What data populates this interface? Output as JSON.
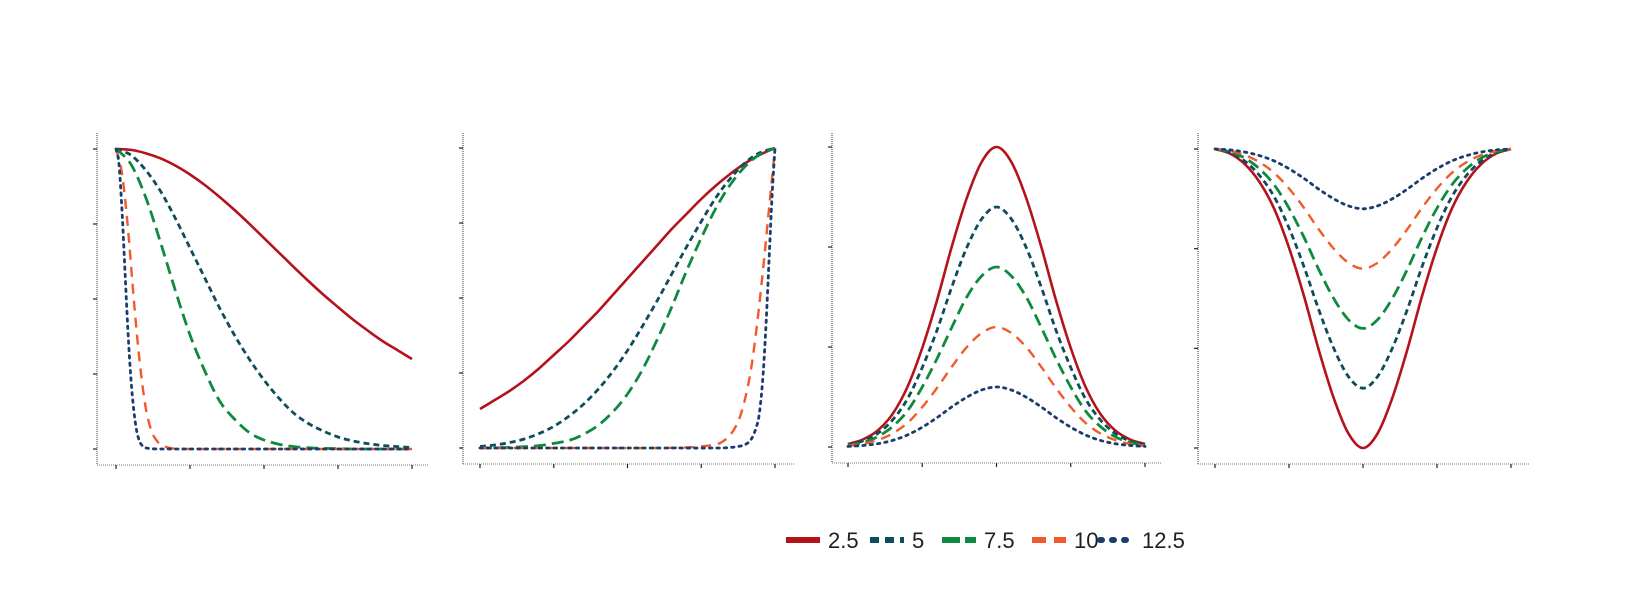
{
  "chart_data": [
    {
      "type": "line",
      "panel": 1,
      "xlim": [
        0,
        1
      ],
      "ylim": [
        0,
        1
      ],
      "x_ticks": 5,
      "y_ticks": 5,
      "grid": false,
      "series": [
        {
          "name": "2.5",
          "color": "#b5121b",
          "dash": "solid",
          "x": [
            0,
            0.05,
            0.1,
            0.15,
            0.2,
            0.25,
            0.3,
            0.35,
            0.4,
            0.45,
            0.5,
            0.55,
            0.6,
            0.65,
            0.7,
            0.75,
            0.8,
            0.85,
            0.9,
            0.95,
            1
          ],
          "values": [
            1,
            0.997,
            0.986,
            0.969,
            0.945,
            0.915,
            0.88,
            0.84,
            0.797,
            0.751,
            0.703,
            0.655,
            0.607,
            0.56,
            0.515,
            0.473,
            0.432,
            0.395,
            0.36,
            0.33,
            0.3
          ]
        },
        {
          "name": "5",
          "color": "#0f4c5c",
          "dash": "dash-short",
          "x": [
            0,
            0.05,
            0.1,
            0.15,
            0.2,
            0.25,
            0.3,
            0.35,
            0.4,
            0.45,
            0.5,
            0.55,
            0.6,
            0.65,
            0.7,
            0.75,
            0.8,
            0.85,
            0.9,
            0.95,
            1
          ],
          "values": [
            1,
            0.98,
            0.93,
            0.86,
            0.77,
            0.67,
            0.57,
            0.47,
            0.38,
            0.3,
            0.23,
            0.17,
            0.12,
            0.085,
            0.06,
            0.04,
            0.027,
            0.018,
            0.012,
            0.008,
            0.005
          ]
        },
        {
          "name": "7.5",
          "color": "#0e8a3e",
          "dash": "dash-long",
          "x": [
            0,
            0.05,
            0.1,
            0.15,
            0.2,
            0.25,
            0.3,
            0.35,
            0.4,
            0.45,
            0.5,
            0.55,
            0.6,
            0.65,
            0.7,
            0.75,
            0.8,
            0.85,
            0.9,
            0.95,
            1
          ],
          "values": [
            1,
            0.95,
            0.84,
            0.69,
            0.53,
            0.38,
            0.26,
            0.16,
            0.1,
            0.055,
            0.03,
            0.016,
            0.008,
            0.004,
            0.002,
            0.001,
            0,
            0,
            0,
            0,
            0
          ]
        },
        {
          "name": "10",
          "color": "#f15a29",
          "dash": "dash-orange",
          "x": [
            0,
            0.02,
            0.04,
            0.06,
            0.08,
            0.1,
            0.12,
            0.14,
            0.16,
            0.18,
            0.2,
            0.25,
            0.3,
            0.4,
            0.5,
            0.6,
            0.7,
            0.8,
            0.9,
            1
          ],
          "values": [
            1,
            0.92,
            0.74,
            0.5,
            0.29,
            0.14,
            0.06,
            0.025,
            0.01,
            0.004,
            0.001,
            0,
            0,
            0,
            0,
            0,
            0,
            0,
            0,
            0
          ]
        },
        {
          "name": "12.5",
          "color": "#1a3d6d",
          "dash": "dotted",
          "x": [
            0,
            0.01,
            0.02,
            0.03,
            0.04,
            0.05,
            0.06,
            0.07,
            0.08,
            0.09,
            0.1,
            0.12,
            0.15,
            0.2,
            0.3,
            0.5,
            0.7,
            1
          ],
          "values": [
            1,
            0.95,
            0.8,
            0.6,
            0.4,
            0.24,
            0.13,
            0.06,
            0.025,
            0.01,
            0.004,
            0.001,
            0,
            0,
            0,
            0,
            0,
            0
          ]
        }
      ]
    },
    {
      "type": "line",
      "panel": 2,
      "xlim": [
        0,
        1
      ],
      "ylim": [
        0,
        1
      ],
      "x_ticks": 5,
      "y_ticks": 5,
      "grid": false,
      "series": [
        {
          "name": "2.5",
          "color": "#b5121b",
          "dash": "solid",
          "x": [
            0,
            0.05,
            0.1,
            0.15,
            0.2,
            0.25,
            0.3,
            0.35,
            0.4,
            0.45,
            0.5,
            0.55,
            0.6,
            0.65,
            0.7,
            0.75,
            0.8,
            0.85,
            0.9,
            0.95,
            1
          ],
          "values": [
            0.13,
            0.16,
            0.19,
            0.225,
            0.265,
            0.31,
            0.355,
            0.405,
            0.455,
            0.51,
            0.565,
            0.62,
            0.675,
            0.73,
            0.78,
            0.83,
            0.875,
            0.915,
            0.95,
            0.978,
            1
          ]
        },
        {
          "name": "5",
          "color": "#0f4c5c",
          "dash": "dash-short",
          "x": [
            0,
            0.05,
            0.1,
            0.15,
            0.2,
            0.25,
            0.3,
            0.35,
            0.4,
            0.45,
            0.5,
            0.55,
            0.6,
            0.65,
            0.7,
            0.75,
            0.8,
            0.85,
            0.9,
            0.95,
            1
          ],
          "values": [
            0.005,
            0.01,
            0.018,
            0.03,
            0.048,
            0.072,
            0.105,
            0.145,
            0.195,
            0.255,
            0.325,
            0.405,
            0.49,
            0.58,
            0.67,
            0.755,
            0.835,
            0.9,
            0.952,
            0.985,
            1
          ]
        },
        {
          "name": "7.5",
          "color": "#0e8a3e",
          "dash": "dash-long",
          "x": [
            0,
            0.1,
            0.2,
            0.3,
            0.35,
            0.4,
            0.45,
            0.5,
            0.55,
            0.6,
            0.65,
            0.7,
            0.75,
            0.8,
            0.85,
            0.9,
            0.95,
            1
          ],
          "values": [
            0,
            0.002,
            0.008,
            0.025,
            0.045,
            0.075,
            0.12,
            0.18,
            0.26,
            0.36,
            0.47,
            0.59,
            0.7,
            0.8,
            0.88,
            0.94,
            0.98,
            1
          ]
        },
        {
          "name": "10",
          "color": "#f15a29",
          "dash": "dash-orange",
          "x": [
            0,
            0.2,
            0.4,
            0.6,
            0.7,
            0.75,
            0.8,
            0.82,
            0.84,
            0.86,
            0.88,
            0.9,
            0.92,
            0.94,
            0.96,
            0.98,
            1
          ],
          "values": [
            0,
            0,
            0,
            0,
            0.002,
            0.005,
            0.012,
            0.02,
            0.035,
            0.06,
            0.1,
            0.17,
            0.27,
            0.42,
            0.6,
            0.8,
            1
          ]
        },
        {
          "name": "12.5",
          "color": "#1a3d6d",
          "dash": "dotted",
          "x": [
            0,
            0.2,
            0.4,
            0.6,
            0.8,
            0.85,
            0.88,
            0.9,
            0.92,
            0.94,
            0.95,
            0.96,
            0.97,
            0.98,
            0.99,
            1
          ],
          "values": [
            0,
            0,
            0,
            0,
            0,
            0.002,
            0.006,
            0.012,
            0.03,
            0.08,
            0.14,
            0.25,
            0.42,
            0.63,
            0.84,
            1
          ]
        }
      ]
    },
    {
      "type": "line",
      "panel": 3,
      "xlim": [
        0,
        1
      ],
      "ylim": [
        0,
        1
      ],
      "x_ticks": 5,
      "y_ticks": 4,
      "grid": false,
      "series": [
        {
          "name": "2.5",
          "color": "#b5121b",
          "dash": "solid",
          "x": [
            0,
            0.05,
            0.1,
            0.15,
            0.2,
            0.25,
            0.3,
            0.35,
            0.4,
            0.45,
            0.5,
            0.55,
            0.6,
            0.65,
            0.7,
            0.75,
            0.8,
            0.85,
            0.9,
            0.95,
            1
          ],
          "values": [
            0.01,
            0.025,
            0.055,
            0.11,
            0.2,
            0.33,
            0.49,
            0.67,
            0.83,
            0.95,
            1,
            0.95,
            0.83,
            0.67,
            0.49,
            0.33,
            0.2,
            0.11,
            0.055,
            0.025,
            0.01
          ]
        },
        {
          "name": "5",
          "color": "#0f4c5c",
          "dash": "dash-short",
          "x": [
            0,
            0.05,
            0.1,
            0.15,
            0.2,
            0.25,
            0.3,
            0.35,
            0.4,
            0.45,
            0.5,
            0.55,
            0.6,
            0.65,
            0.7,
            0.75,
            0.8,
            0.85,
            0.9,
            0.95,
            1
          ],
          "values": [
            0.008,
            0.02,
            0.045,
            0.09,
            0.16,
            0.265,
            0.39,
            0.535,
            0.665,
            0.76,
            0.8,
            0.76,
            0.665,
            0.535,
            0.39,
            0.265,
            0.16,
            0.09,
            0.045,
            0.02,
            0.008
          ]
        },
        {
          "name": "7.5",
          "color": "#0e8a3e",
          "dash": "dash-long",
          "x": [
            0,
            0.05,
            0.1,
            0.15,
            0.2,
            0.25,
            0.3,
            0.35,
            0.4,
            0.45,
            0.5,
            0.55,
            0.6,
            0.65,
            0.7,
            0.75,
            0.8,
            0.85,
            0.9,
            0.95,
            1
          ],
          "values": [
            0.006,
            0.015,
            0.034,
            0.068,
            0.12,
            0.2,
            0.295,
            0.4,
            0.5,
            0.57,
            0.6,
            0.57,
            0.5,
            0.4,
            0.295,
            0.2,
            0.12,
            0.068,
            0.034,
            0.015,
            0.006
          ]
        },
        {
          "name": "10",
          "color": "#f15a29",
          "dash": "dash-orange",
          "x": [
            0,
            0.05,
            0.1,
            0.15,
            0.2,
            0.25,
            0.3,
            0.35,
            0.4,
            0.45,
            0.5,
            0.55,
            0.6,
            0.65,
            0.7,
            0.75,
            0.8,
            0.85,
            0.9,
            0.95,
            1
          ],
          "values": [
            0.004,
            0.01,
            0.023,
            0.045,
            0.08,
            0.133,
            0.197,
            0.268,
            0.333,
            0.38,
            0.4,
            0.38,
            0.333,
            0.268,
            0.197,
            0.133,
            0.08,
            0.045,
            0.023,
            0.01,
            0.004
          ]
        },
        {
          "name": "12.5",
          "color": "#1a3d6d",
          "dash": "dotted",
          "x": [
            0,
            0.05,
            0.1,
            0.15,
            0.2,
            0.25,
            0.3,
            0.35,
            0.4,
            0.45,
            0.5,
            0.55,
            0.6,
            0.65,
            0.7,
            0.75,
            0.8,
            0.85,
            0.9,
            0.95,
            1
          ],
          "values": [
            0.002,
            0.005,
            0.011,
            0.022,
            0.04,
            0.066,
            0.098,
            0.134,
            0.166,
            0.19,
            0.2,
            0.19,
            0.166,
            0.134,
            0.098,
            0.066,
            0.04,
            0.022,
            0.011,
            0.005,
            0.002
          ]
        }
      ]
    },
    {
      "type": "line",
      "panel": 4,
      "xlim": [
        0,
        1
      ],
      "ylim": [
        0,
        1
      ],
      "x_ticks": 5,
      "y_ticks": 4,
      "grid": false,
      "series": [
        {
          "name": "2.5",
          "color": "#b5121b",
          "dash": "solid",
          "x": [
            0,
            0.05,
            0.1,
            0.15,
            0.2,
            0.25,
            0.3,
            0.35,
            0.4,
            0.45,
            0.5,
            0.55,
            0.6,
            0.65,
            0.7,
            0.75,
            0.8,
            0.85,
            0.9,
            0.95,
            1
          ],
          "values": [
            1,
            0.985,
            0.95,
            0.89,
            0.8,
            0.67,
            0.51,
            0.33,
            0.17,
            0.05,
            0,
            0.05,
            0.17,
            0.33,
            0.51,
            0.67,
            0.8,
            0.89,
            0.95,
            0.985,
            1
          ]
        },
        {
          "name": "5",
          "color": "#0f4c5c",
          "dash": "dash-short",
          "x": [
            0,
            0.05,
            0.1,
            0.15,
            0.2,
            0.25,
            0.3,
            0.35,
            0.4,
            0.45,
            0.5,
            0.55,
            0.6,
            0.65,
            0.7,
            0.75,
            0.8,
            0.85,
            0.9,
            0.95,
            1
          ],
          "values": [
            1,
            0.988,
            0.96,
            0.912,
            0.84,
            0.736,
            0.608,
            0.464,
            0.336,
            0.24,
            0.2,
            0.24,
            0.336,
            0.464,
            0.608,
            0.736,
            0.84,
            0.912,
            0.96,
            0.988,
            1
          ]
        },
        {
          "name": "7.5",
          "color": "#0e8a3e",
          "dash": "dash-long",
          "x": [
            0,
            0.05,
            0.1,
            0.15,
            0.2,
            0.25,
            0.3,
            0.35,
            0.4,
            0.45,
            0.5,
            0.55,
            0.6,
            0.65,
            0.7,
            0.75,
            0.8,
            0.85,
            0.9,
            0.95,
            1
          ],
          "values": [
            1,
            0.991,
            0.97,
            0.934,
            0.88,
            0.802,
            0.706,
            0.598,
            0.502,
            0.43,
            0.4,
            0.43,
            0.502,
            0.598,
            0.706,
            0.802,
            0.88,
            0.934,
            0.97,
            0.991,
            1
          ]
        },
        {
          "name": "10",
          "color": "#f15a29",
          "dash": "dash-orange",
          "x": [
            0,
            0.05,
            0.1,
            0.15,
            0.2,
            0.25,
            0.3,
            0.35,
            0.4,
            0.45,
            0.5,
            0.55,
            0.6,
            0.65,
            0.7,
            0.75,
            0.8,
            0.85,
            0.9,
            0.95,
            1
          ],
          "values": [
            1,
            0.994,
            0.98,
            0.956,
            0.92,
            0.868,
            0.804,
            0.732,
            0.668,
            0.62,
            0.6,
            0.62,
            0.668,
            0.732,
            0.804,
            0.868,
            0.92,
            0.956,
            0.98,
            0.994,
            1
          ]
        },
        {
          "name": "12.5",
          "color": "#1a3d6d",
          "dash": "dotted",
          "x": [
            0,
            0.05,
            0.1,
            0.15,
            0.2,
            0.25,
            0.3,
            0.35,
            0.4,
            0.45,
            0.5,
            0.55,
            0.6,
            0.65,
            0.7,
            0.75,
            0.8,
            0.85,
            0.9,
            0.95,
            1
          ],
          "values": [
            1,
            0.997,
            0.99,
            0.978,
            0.96,
            0.934,
            0.902,
            0.866,
            0.834,
            0.81,
            0.8,
            0.81,
            0.834,
            0.866,
            0.902,
            0.934,
            0.96,
            0.978,
            0.99,
            0.997,
            1
          ]
        }
      ]
    }
  ],
  "legend": {
    "placement": "bottom-center",
    "items": [
      {
        "label": "2.5",
        "color": "#b5121b",
        "dash": "solid"
      },
      {
        "label": "5",
        "color": "#0f4c5c",
        "dash": "dash-short"
      },
      {
        "label": "7.5",
        "color": "#0e8a3e",
        "dash": "dash-long"
      },
      {
        "label": "10",
        "color": "#f15a29",
        "dash": "dash-orange"
      },
      {
        "label": "12.5",
        "color": "#1a3d6d",
        "dash": "dotted"
      }
    ]
  }
}
